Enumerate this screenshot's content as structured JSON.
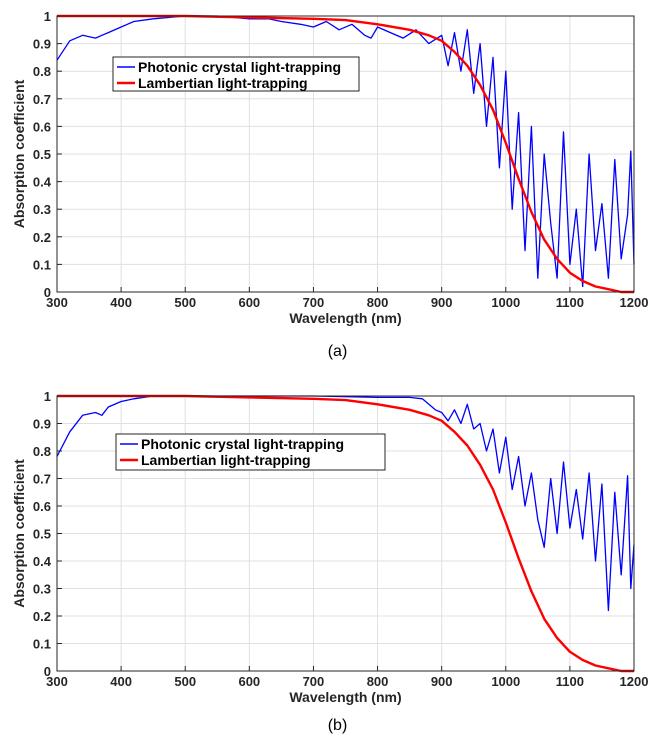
{
  "chart_data": [
    {
      "type": "line",
      "caption": "(a)",
      "xlabel": "Wavelength (nm)",
      "ylabel": "Absorption coefficient",
      "xlim": [
        300,
        1200
      ],
      "ylim": [
        0,
        1
      ],
      "xticks": [
        300,
        400,
        500,
        600,
        700,
        800,
        900,
        1000,
        1100,
        1200
      ],
      "yticks": [
        0,
        0.1,
        0.2,
        0.3,
        0.4,
        0.5,
        0.6,
        0.7,
        0.8,
        0.9,
        1
      ],
      "grid": true,
      "legend_position": "upper-left",
      "series": [
        {
          "name": "Photonic crystal light-trapping",
          "color": "#0000ff",
          "x": [
            300,
            320,
            340,
            360,
            370,
            380,
            400,
            420,
            450,
            500,
            550,
            600,
            630,
            650,
            680,
            700,
            720,
            740,
            760,
            780,
            790,
            800,
            820,
            840,
            860,
            880,
            900,
            910,
            920,
            930,
            940,
            950,
            960,
            970,
            980,
            990,
            1000,
            1010,
            1020,
            1030,
            1040,
            1050,
            1060,
            1070,
            1080,
            1090,
            1100,
            1110,
            1120,
            1130,
            1140,
            1150,
            1160,
            1170,
            1180,
            1190,
            1195,
            1200
          ],
          "y": [
            0.84,
            0.91,
            0.93,
            0.92,
            0.93,
            0.94,
            0.96,
            0.98,
            0.99,
            1.0,
            1.0,
            0.99,
            0.99,
            0.98,
            0.97,
            0.96,
            0.98,
            0.95,
            0.97,
            0.93,
            0.92,
            0.96,
            0.94,
            0.92,
            0.95,
            0.9,
            0.93,
            0.82,
            0.94,
            0.8,
            0.95,
            0.72,
            0.9,
            0.6,
            0.85,
            0.45,
            0.8,
            0.3,
            0.65,
            0.15,
            0.6,
            0.05,
            0.5,
            0.25,
            0.05,
            0.58,
            0.1,
            0.3,
            0.02,
            0.5,
            0.15,
            0.32,
            0.05,
            0.48,
            0.12,
            0.28,
            0.51,
            0.1
          ]
        },
        {
          "name": "Lambertian light-trapping",
          "color": "#ff0000",
          "x": [
            300,
            400,
            500,
            600,
            700,
            750,
            800,
            850,
            880,
            900,
            920,
            940,
            960,
            980,
            1000,
            1020,
            1040,
            1060,
            1080,
            1100,
            1120,
            1140,
            1160,
            1180,
            1200
          ],
          "y": [
            1.0,
            1.0,
            1.0,
            0.995,
            0.99,
            0.985,
            0.97,
            0.95,
            0.93,
            0.91,
            0.87,
            0.82,
            0.75,
            0.66,
            0.54,
            0.41,
            0.29,
            0.19,
            0.12,
            0.07,
            0.04,
            0.02,
            0.01,
            0.0,
            0.0
          ]
        }
      ]
    },
    {
      "type": "line",
      "caption": "(b)",
      "xlabel": "Wavelength (nm)",
      "ylabel": "Absorption coefficient",
      "xlim": [
        300,
        1200
      ],
      "ylim": [
        0,
        1
      ],
      "xticks": [
        300,
        400,
        500,
        600,
        700,
        800,
        900,
        1000,
        1100,
        1200
      ],
      "yticks": [
        0,
        0.1,
        0.2,
        0.3,
        0.4,
        0.5,
        0.6,
        0.7,
        0.8,
        0.9,
        1
      ],
      "grid": true,
      "legend_position": "center-left",
      "series": [
        {
          "name": "Photonic crystal light-trapping",
          "color": "#0000ff",
          "x": [
            300,
            320,
            340,
            360,
            370,
            380,
            400,
            420,
            450,
            500,
            600,
            700,
            800,
            850,
            870,
            890,
            900,
            910,
            920,
            930,
            940,
            950,
            960,
            970,
            980,
            990,
            1000,
            1010,
            1020,
            1030,
            1040,
            1050,
            1060,
            1070,
            1080,
            1090,
            1100,
            1110,
            1120,
            1130,
            1140,
            1150,
            1160,
            1170,
            1180,
            1190,
            1195,
            1200
          ],
          "y": [
            0.78,
            0.87,
            0.93,
            0.94,
            0.93,
            0.96,
            0.98,
            0.99,
            1.0,
            1.0,
            1.0,
            1.0,
            0.995,
            0.995,
            0.99,
            0.95,
            0.94,
            0.91,
            0.95,
            0.9,
            0.97,
            0.88,
            0.9,
            0.8,
            0.88,
            0.72,
            0.85,
            0.66,
            0.78,
            0.6,
            0.72,
            0.55,
            0.45,
            0.7,
            0.5,
            0.76,
            0.52,
            0.66,
            0.48,
            0.72,
            0.4,
            0.68,
            0.22,
            0.65,
            0.35,
            0.71,
            0.3,
            0.46
          ]
        },
        {
          "name": "Lambertian light-trapping",
          "color": "#ff0000",
          "x": [
            300,
            400,
            500,
            600,
            700,
            750,
            800,
            850,
            880,
            900,
            920,
            940,
            960,
            980,
            1000,
            1020,
            1040,
            1060,
            1080,
            1100,
            1120,
            1140,
            1160,
            1180,
            1200
          ],
          "y": [
            1.0,
            1.0,
            1.0,
            0.995,
            0.99,
            0.985,
            0.97,
            0.95,
            0.93,
            0.91,
            0.87,
            0.82,
            0.75,
            0.66,
            0.54,
            0.41,
            0.29,
            0.19,
            0.12,
            0.07,
            0.04,
            0.02,
            0.01,
            0.0,
            0.0
          ]
        }
      ]
    }
  ]
}
